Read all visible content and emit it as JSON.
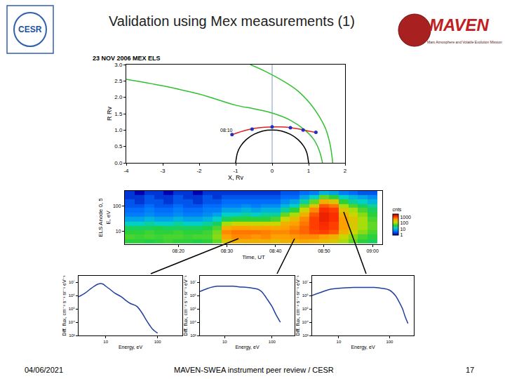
{
  "slide": {
    "title": "Validation using Mex measurements (1)",
    "date": "04/06/2021",
    "footer": "MAVEN-SWEA instrument peer review / CESR",
    "page": "17",
    "logos": {
      "left": "CESR",
      "right": "MAVEN",
      "right_subtitle": "Mars Atmosphere and Volatile Evolution Mission"
    }
  },
  "chart_data": [
    {
      "type": "line",
      "title": "23 NOV 2006 MEX ELS",
      "x_label": "X, Rv",
      "y_label": "R Rv",
      "xlim": [
        -4,
        2
      ],
      "ylim": [
        0,
        3
      ],
      "xticks": [
        -4,
        -3,
        -2,
        -1,
        0,
        1,
        2
      ],
      "yticks": [
        {
          "value": 0,
          "label": "0.0"
        },
        0.5,
        {
          "value": 1,
          "label": "1.0"
        },
        1.5,
        {
          "value": 2,
          "label": "2.0"
        },
        2.5,
        {
          "value": 3,
          "label": "3.0"
        }
      ],
      "grid": false,
      "series": [
        {
          "type": "line",
          "color": "#a8bcd8",
          "x": [
            0,
            0
          ],
          "values": [
            0,
            3
          ]
        },
        {
          "type": "line",
          "color": "#000000",
          "x": [
            -1,
            -0.95,
            -0.87,
            -0.71,
            -0.5,
            -0.26,
            0,
            0.26,
            0.5,
            0.71,
            0.87,
            0.95,
            1
          ],
          "values": [
            0,
            0.31,
            0.5,
            0.71,
            0.87,
            0.97,
            1,
            0.97,
            0.87,
            0.71,
            0.5,
            0.31,
            0
          ]
        },
        {
          "type": "line",
          "color": "#30c030",
          "x": [
            -4,
            -3,
            -2,
            -1,
            -0.5,
            0,
            0.5,
            0.9,
            1.15,
            1.3,
            1.38
          ],
          "values": [
            2.55,
            2.35,
            2.1,
            1.76,
            1.65,
            1.52,
            1.3,
            1.0,
            0.7,
            0.35,
            0
          ]
        },
        {
          "type": "line",
          "color": "#30c030",
          "x": [
            -0.6,
            -0.2,
            0.3,
            0.7,
            1.05,
            1.3,
            1.48,
            1.6,
            1.66
          ],
          "values": [
            3.0,
            2.8,
            2.5,
            2.2,
            1.8,
            1.4,
            1.0,
            0.5,
            0.0
          ]
        },
        {
          "type": "line",
          "color": "#e02020",
          "x": [
            -1.1,
            -0.8,
            -0.5,
            -0.2,
            0.1,
            0.4,
            0.7,
            0.95,
            1.2
          ],
          "values": [
            0.86,
            0.97,
            1.05,
            1.09,
            1.1,
            1.09,
            1.04,
            0.98,
            0.93
          ]
        },
        {
          "type": "scatter",
          "color": "#2030c0",
          "marker": "circle",
          "x": [
            -1.1,
            -0.55,
            0,
            0.5,
            0.85,
            1.2
          ],
          "values": [
            0.86,
            1.03,
            1.1,
            1.07,
            1.0,
            0.93
          ]
        }
      ],
      "annotations": [
        {
          "text": "08:10",
          "x": -1.25,
          "y": 1.0
        }
      ]
    },
    {
      "type": "heatmap",
      "x_label": "Time, UT",
      "y_label": [
        "ELS Anode 0, 5",
        "E, eV"
      ],
      "log": "y",
      "grid": false,
      "xlim": [
        489,
        542
      ],
      "ylim": [
        3,
        400
      ],
      "xticks": [
        {
          "value": 500,
          "label": "08:20"
        },
        {
          "value": 510,
          "label": "08:30"
        },
        {
          "value": 520,
          "label": "08:40"
        },
        {
          "value": 530,
          "label": "08:50"
        },
        {
          "value": 540,
          "label": "09:00"
        }
      ],
      "yticks": [
        10,
        100
      ],
      "x": [
        490,
        492,
        494,
        496,
        498,
        500,
        502,
        504,
        506,
        508,
        510,
        512,
        514,
        516,
        518,
        520,
        522,
        524,
        526,
        528,
        530,
        532,
        534,
        536,
        538,
        540
      ],
      "y": [
        4,
        6,
        9,
        13,
        20,
        30,
        45,
        70,
        100,
        150,
        230,
        350
      ],
      "cells": [
        [
          40,
          40,
          35,
          40,
          45,
          40,
          40,
          35,
          40,
          60,
          200,
          300,
          300,
          300,
          300,
          250,
          300,
          300,
          350,
          300,
          250,
          200,
          100,
          60,
          40,
          30
        ],
        [
          50,
          45,
          50,
          45,
          50,
          50,
          45,
          50,
          50,
          80,
          400,
          500,
          500,
          450,
          500,
          400,
          400,
          450,
          500,
          500,
          400,
          300,
          150,
          80,
          50,
          40
        ],
        [
          40,
          40,
          45,
          40,
          40,
          45,
          40,
          40,
          45,
          70,
          500,
          600,
          600,
          600,
          550,
          500,
          500,
          600,
          700,
          900,
          1000,
          800,
          300,
          150,
          80,
          50
        ],
        [
          30,
          30,
          30,
          35,
          30,
          30,
          30,
          30,
          35,
          50,
          300,
          400,
          400,
          350,
          400,
          350,
          400,
          500,
          700,
          1000,
          1200,
          1000,
          400,
          200,
          100,
          60
        ],
        [
          15,
          15,
          20,
          15,
          15,
          20,
          15,
          15,
          20,
          30,
          100,
          150,
          150,
          150,
          150,
          150,
          300,
          400,
          600,
          1000,
          1300,
          1000,
          400,
          200,
          100,
          60
        ],
        [
          8,
          8,
          10,
          8,
          8,
          10,
          8,
          8,
          10,
          15,
          30,
          40,
          40,
          40,
          40,
          50,
          150,
          250,
          500,
          1000,
          1500,
          1200,
          400,
          200,
          100,
          50
        ],
        [
          5,
          5,
          6,
          5,
          5,
          6,
          5,
          5,
          6,
          8,
          15,
          15,
          20,
          15,
          20,
          20,
          60,
          100,
          300,
          800,
          1500,
          1200,
          300,
          150,
          80,
          40
        ],
        [
          4,
          4,
          5,
          4,
          4,
          5,
          4,
          4,
          5,
          5,
          8,
          8,
          10,
          8,
          10,
          10,
          20,
          40,
          150,
          500,
          1200,
          1000,
          200,
          100,
          50,
          30
        ],
        [
          3,
          3,
          4,
          3,
          3,
          4,
          3,
          3,
          4,
          4,
          5,
          5,
          6,
          5,
          6,
          6,
          10,
          15,
          60,
          200,
          800,
          600,
          100,
          50,
          30,
          20
        ],
        [
          3,
          2,
          3,
          3,
          2,
          3,
          3,
          2,
          3,
          3,
          4,
          4,
          4,
          4,
          4,
          4,
          6,
          8,
          20,
          60,
          300,
          200,
          40,
          20,
          15,
          10
        ],
        [
          2,
          2,
          3,
          2,
          2,
          3,
          2,
          2,
          3,
          2,
          3,
          3,
          3,
          3,
          3,
          3,
          4,
          4,
          8,
          15,
          60,
          40,
          15,
          10,
          8,
          6
        ],
        [
          2,
          1,
          2,
          2,
          1,
          2,
          2,
          1,
          2,
          2,
          2,
          2,
          2,
          2,
          2,
          2,
          3,
          3,
          4,
          5,
          10,
          8,
          5,
          4,
          3,
          3
        ]
      ],
      "colorbar_title": "cnts",
      "colorbar_range": [
        1,
        3000
      ],
      "colorbar_ticks": [
        1,
        10,
        100,
        1000
      ]
    },
    {
      "type": "line",
      "x_label": "Energy, eV",
      "y_label": "Diff. flux, cm⁻² s⁻¹ sr⁻¹ eV⁻¹",
      "log": true,
      "grid": false,
      "xlim": [
        3,
        300
      ],
      "ylim": [
        1000,
        30000000
      ],
      "xticks": [
        10,
        100
      ],
      "yticks": [
        {
          "value": 1000,
          "label": "10³"
        },
        {
          "value": 10000,
          "label": "10⁴"
        },
        {
          "value": 100000,
          "label": "10⁵"
        },
        {
          "value": 1000000,
          "label": "10⁶"
        },
        {
          "value": 10000000,
          "label": "10⁷"
        }
      ],
      "series": [
        {
          "type": "line",
          "color": "#2040a0",
          "x": [
            3,
            4,
            5,
            6,
            7,
            8,
            9,
            10,
            12,
            15,
            20,
            25,
            30,
            35,
            40,
            50,
            60,
            70,
            80,
            100
          ],
          "values": [
            800000,
            1500000,
            3000000,
            5000000,
            7000000,
            8000000,
            7000000,
            5000000,
            3000000,
            1500000,
            800000,
            400000,
            250000,
            200000,
            150000,
            50000,
            15000,
            6000,
            3000,
            1500
          ]
        }
      ]
    },
    {
      "type": "line",
      "x_label": "Energy, eV",
      "y_label": "Diff. flux, cm⁻² s⁻¹ sr⁻¹ eV⁻¹",
      "log": true,
      "grid": false,
      "xlim": [
        3,
        300
      ],
      "ylim": [
        1000,
        30000000
      ],
      "xticks": [
        10,
        100
      ],
      "yticks": [
        {
          "value": 1000,
          "label": "10³"
        },
        {
          "value": 10000,
          "label": "10⁴"
        },
        {
          "value": 100000,
          "label": "10⁵"
        },
        {
          "value": 1000000,
          "label": "10⁶"
        },
        {
          "value": 10000000,
          "label": "10⁷"
        }
      ],
      "series": [
        {
          "type": "line",
          "color": "#2040a0",
          "x": [
            3,
            4,
            5,
            7,
            10,
            15,
            20,
            30,
            40,
            50,
            60,
            70,
            80,
            100,
            120,
            150
          ],
          "values": [
            2000000,
            3000000,
            4000000,
            5000000,
            5000000,
            5000000,
            4500000,
            4000000,
            3500000,
            3000000,
            2000000,
            1000000,
            500000,
            150000,
            40000,
            10000
          ]
        }
      ]
    },
    {
      "type": "line",
      "x_label": "Energy, eV",
      "y_label": "Diff. flux, cm⁻² s⁻¹ sr⁻¹ eV⁻¹",
      "log": true,
      "grid": false,
      "xlim": [
        3,
        300
      ],
      "ylim": [
        1000,
        30000000
      ],
      "xticks": [
        10,
        100
      ],
      "yticks": [
        {
          "value": 1000,
          "label": "10³"
        },
        {
          "value": 10000,
          "label": "10⁴"
        },
        {
          "value": 100000,
          "label": "10⁵"
        },
        {
          "value": 1000000,
          "label": "10⁶"
        },
        {
          "value": 10000000,
          "label": "10⁷"
        }
      ],
      "series": [
        {
          "type": "line",
          "color": "#2040a0",
          "x": [
            3,
            5,
            7,
            10,
            20,
            30,
            50,
            70,
            100,
            130,
            150,
            180,
            200,
            230
          ],
          "values": [
            1000000,
            2000000,
            3000000,
            3500000,
            4000000,
            4000000,
            4000000,
            3500000,
            2500000,
            1000000,
            400000,
            100000,
            30000,
            8000
          ]
        }
      ]
    }
  ]
}
